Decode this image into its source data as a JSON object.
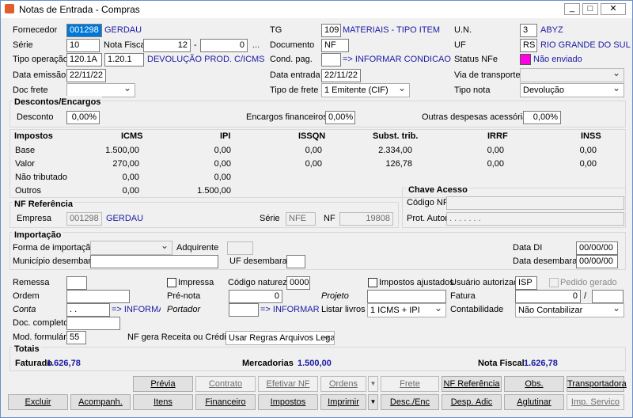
{
  "window": {
    "title": "Notas de Entrada - Compras"
  },
  "header": {
    "fornecedor": {
      "label": "Fornecedor",
      "code": "001298",
      "name": "GERDAU"
    },
    "tg": {
      "label": "TG",
      "code": "109",
      "name": "MATERIAIS - TIPO ITEM"
    },
    "un": {
      "label": "U.N.",
      "code": "3",
      "name": "ABYZ"
    },
    "serie": {
      "label": "Série",
      "value": "10"
    },
    "nota_fiscal": {
      "label": "Nota Fiscal",
      "number": "12",
      "separator": "-",
      "sub": "0",
      "more": "..."
    },
    "documento": {
      "label": "Documento",
      "value": "NF"
    },
    "uf": {
      "label": "UF",
      "code": "RS",
      "name": "RIO GRANDE DO SUL"
    },
    "tipo_operacao": {
      "label": "Tipo operação",
      "code": "120.1A",
      "cfop": "1.20.1",
      "name": "DEVOLUÇÃO  PROD. C/ICMS C/IPI S..."
    },
    "cond_pag": {
      "label": "Cond. pag.",
      "name": "=> INFORMAR CONDICAO DE PA"
    },
    "status_nfe": {
      "label": "Status NFe",
      "value": "Não enviado"
    },
    "data_emissao": {
      "label": "Data emissão",
      "value": "22/11/22"
    },
    "data_entrada": {
      "label": "Data entrada",
      "value": "22/11/22"
    },
    "via_transporte": {
      "label": "Via de transporte"
    },
    "doc_frete": {
      "label": "Doc frete"
    },
    "tipo_frete": {
      "label": "Tipo de frete",
      "value": "1 Emitente (CIF)"
    },
    "tipo_nota": {
      "label": "Tipo nota",
      "value": "Devolução"
    }
  },
  "descontos": {
    "title": "Descontos/Encargos",
    "desconto": {
      "label": "Desconto",
      "value": "0,00%"
    },
    "encargos": {
      "label": "Encargos financeiros",
      "value": "0,00%"
    },
    "outras": {
      "label": "Outras despesas acessórias",
      "value": "0,00%"
    }
  },
  "impostos": {
    "title": "Impostos",
    "columns": [
      "ICMS",
      "IPI",
      "ISSQN",
      "Subst. trib.",
      "IRRF",
      "INSS"
    ],
    "rows": [
      {
        "label": "Base",
        "values": [
          "1.500,00",
          "0,00",
          "0,00",
          "2.334,00",
          "0,00",
          "0,00"
        ]
      },
      {
        "label": "Valor",
        "values": [
          "270,00",
          "0,00",
          "0,00",
          "126,78",
          "0,00",
          "0,00"
        ]
      },
      {
        "label": "Não tributado",
        "values": [
          "0,00",
          "0,00"
        ]
      },
      {
        "label": "Outros",
        "values": [
          "0,00",
          "1.500,00"
        ]
      }
    ]
  },
  "chave_acesso": {
    "title": "Chave Acesso",
    "codigo_label": "Código NFe",
    "prot_label": "Prot. Autor.",
    "prot_value": ".     .     .     .     .     .     ."
  },
  "nf_referencia": {
    "title": "NF Referência",
    "empresa_label": "Empresa",
    "empresa_code": "001298",
    "empresa_name": "GERDAU",
    "serie_label": "Série",
    "serie_value": "NFE",
    "nf_label": "NF",
    "nf_value": "19808"
  },
  "importacao": {
    "title": "Importação",
    "forma_label": "Forma de importação",
    "adquirente_label": "Adquirente",
    "data_di_label": "Data DI",
    "data_di_value": "00/00/00",
    "municipio_label": "Município desembaraço",
    "uf_label": "UF desembaraço",
    "data_desemb_label": "Data desembaraço",
    "data_desemb_value": "00/00/00"
  },
  "outros": {
    "remessa": "Remessa",
    "impressa": "Impressa",
    "codigo_natureza_label": "Código natureza",
    "codigo_natureza_value": "0000",
    "impostos_ajustados": "Impostos ajustados",
    "usuario_label": "Usuário autorizado",
    "usuario_value": "ISP",
    "pedido_gerado": "Pedido gerado",
    "ordem": "Ordem",
    "pre_nota_label": "Pré-nota",
    "pre_nota_value": "0",
    "projeto": "Projeto",
    "fatura_label": "Fatura",
    "fatura_value": "0",
    "fatura_sep": "/",
    "conta_label": "Conta",
    "conta_value": " .  .",
    "conta_name": "=> INFORMAR",
    "portador_label": "Portador",
    "portador_name": "=> INFORMAR PO",
    "listar_label": "Listar livros",
    "listar_value": "1 ICMS + IPI",
    "contab_label": "Contabilidade",
    "contab_value": "Não Contabilizar",
    "doc_completo": "Doc. completo",
    "mod_label": "Mod. formulário",
    "mod_value": "55",
    "receita_label": "NF gera Receita ou Crédito",
    "receita_value": "Usar Regras Arquivos Legais"
  },
  "totais": {
    "title": "Totais",
    "faturado_label": "Faturado",
    "faturado_value": "1.626,78",
    "mercadorias_label": "Mercadorias",
    "mercadorias_value": "1.500,00",
    "nota_label": "Nota Fiscal",
    "nota_value": "1.626,78"
  },
  "buttons": [
    "Prévia",
    "Contrato",
    "Efetivar NF",
    "Ordens",
    "Frete",
    "NF Referência",
    "Obs.",
    "Transportadora",
    "Excluir",
    "Acompanh.",
    "Itens",
    "Financeiro",
    "Impostos",
    "Imprimir",
    "Desc./Enc",
    "Desp. Adic",
    "Aglutinar",
    "Imp. Servico"
  ]
}
